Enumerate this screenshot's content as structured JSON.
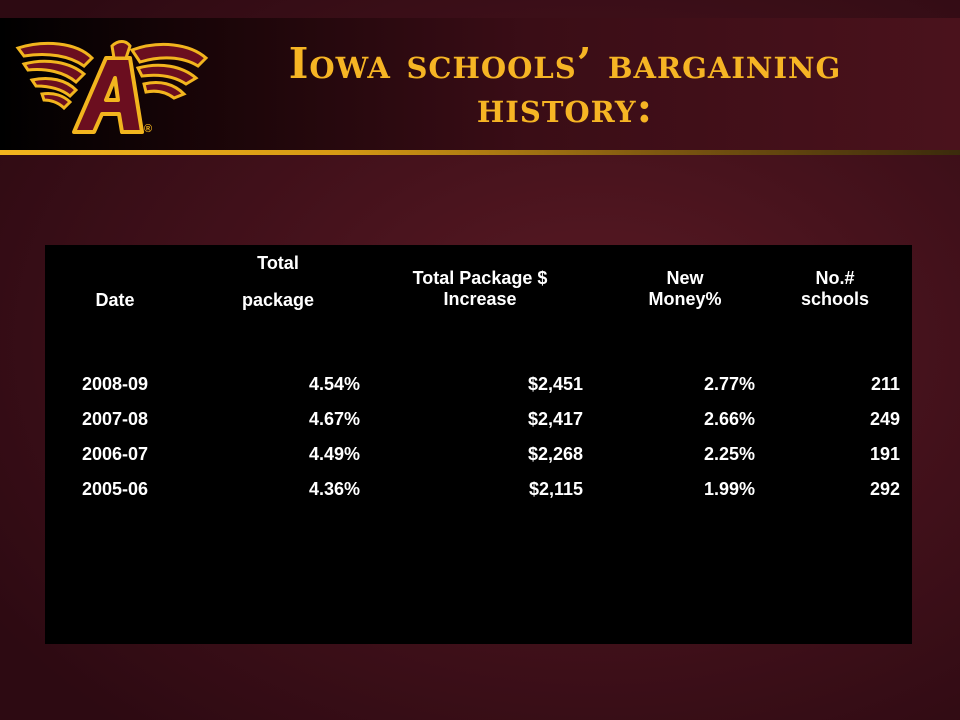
{
  "title": "Iowa schools’ bargaining history:",
  "logo": {
    "icon": "winged-a-logo-icon",
    "trademark": "®"
  },
  "colors": {
    "background": "#43111b",
    "header_gold": "#f6b524",
    "table_background": "#000000",
    "table_text": "#ffffff"
  },
  "table": {
    "headers": {
      "date": "Date",
      "total_package_line1": "Total",
      "total_package_line2": "package",
      "total_increase_line1": "Total Package $",
      "total_increase_line2": "Increase",
      "new_money_line1": "New",
      "new_money_line2": "Money%",
      "num_schools_line1": "No.#",
      "num_schools_line2": "schools"
    },
    "rows": [
      {
        "date": "2008-09",
        "total_package": "4.54%",
        "increase": "$2,451",
        "new_money": "2.77%",
        "schools": "211"
      },
      {
        "date": "2007-08",
        "total_package": "4.67%",
        "increase": "$2,417",
        "new_money": "2.66%",
        "schools": "249"
      },
      {
        "date": "2006-07",
        "total_package": "4.49%",
        "increase": "$2,268",
        "new_money": "2.25%",
        "schools": "191"
      },
      {
        "date": "2005-06",
        "total_package": "4.36%",
        "increase": "$2,115",
        "new_money": "1.99%",
        "schools": "292"
      }
    ]
  }
}
